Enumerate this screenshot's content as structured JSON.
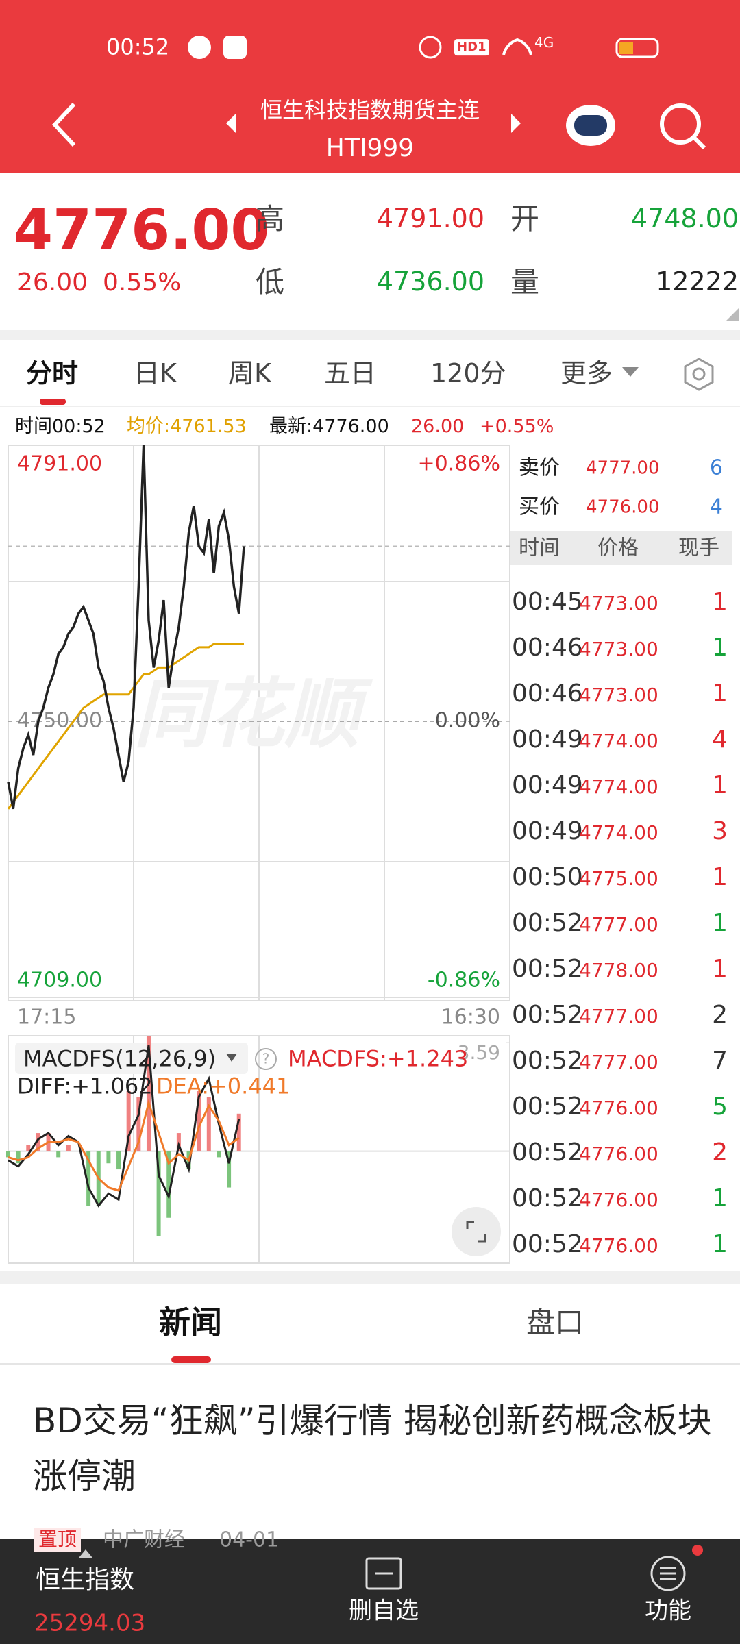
{
  "status_bar": {
    "time": "00:52",
    "hd": "HD1",
    "network": "4G"
  },
  "header": {
    "title": "恒生科技指数期货主连",
    "code": "HTI999"
  },
  "quote": {
    "price": "4776.00",
    "change": "26.00",
    "change_pct": "0.55%",
    "high_label": "高",
    "high": "4791.00",
    "open_label": "开",
    "open": "4748.00",
    "low_label": "低",
    "low": "4736.00",
    "volume_label": "量",
    "volume": "12222"
  },
  "tabs": [
    "分时",
    "日K",
    "周K",
    "五日",
    "120分",
    "更多"
  ],
  "info_bar": {
    "time": "时间00:52",
    "avg": "均价:4761.53",
    "latest": "最新:4776.00",
    "change": "26.00",
    "change_pct": "+0.55%"
  },
  "chart_data": [
    {
      "type": "line",
      "watermark": "同花顺",
      "xlim": [
        0,
        100
      ],
      "xticks": [
        {
          "value": 0,
          "label": "17:15"
        },
        {
          "value": 100,
          "label": "16:30"
        }
      ],
      "ylim": [
        4709,
        4791
      ],
      "yticks": [
        {
          "value": 4791,
          "label": "4791.00"
        },
        {
          "value": 4750,
          "label": "4750.00"
        },
        {
          "value": 4709,
          "label": "4709.00"
        }
      ],
      "y2lim": [
        -0.86,
        0.86
      ],
      "y2ticks": [
        {
          "value": 0.86,
          "label": "+0.86%"
        },
        {
          "value": 0,
          "label": "0.00%"
        },
        {
          "value": -0.86,
          "label": "-0.86%"
        }
      ],
      "last_price_line": 4776,
      "series": [
        {
          "color": "#222222",
          "values": [
            4741,
            4737,
            4743,
            4746,
            4748,
            4745,
            4750,
            4752,
            4755,
            4757,
            4760,
            4761,
            4763,
            4764,
            4766,
            4767,
            4765,
            4763,
            4758,
            4756,
            4752,
            4749,
            4745,
            4741,
            4744,
            4752,
            4770,
            4791,
            4765,
            4758,
            4762,
            4768,
            4755,
            4760,
            4764,
            4770,
            4778,
            4782,
            4776,
            4775,
            4780,
            4772,
            4779,
            4781,
            4777,
            4770,
            4766,
            4776
          ]
        },
        {
          "color": "#e0a400",
          "values": [
            4737,
            4738,
            4739,
            4740,
            4741,
            4742,
            4743,
            4744,
            4745,
            4746,
            4747,
            4748,
            4749,
            4750,
            4751,
            4752,
            4752.5,
            4753,
            4753.5,
            4754,
            4754,
            4754,
            4754,
            4754,
            4754,
            4755,
            4756,
            4757,
            4757,
            4757.5,
            4758,
            4758,
            4758,
            4758.5,
            4759,
            4759.5,
            4760,
            4760.5,
            4761,
            4761,
            4761,
            4761.5,
            4761.5,
            4761.5,
            4761.5,
            4761.5,
            4761.5,
            4761.5
          ]
        }
      ]
    },
    {
      "type": "line",
      "title": "MACDFS(12,26,9)",
      "xlim": [
        0,
        50
      ],
      "ylim": [
        -3.7,
        3.59
      ],
      "yticks": [
        3.59
      ],
      "up_color": "#f08080",
      "down_color": "#7cc47c",
      "series": [
        {
          "name": "MACDFS:+1.243",
          "type": "bar",
          "values": [
            -0.2,
            -0.4,
            0.2,
            0.6,
            0.6,
            -0.2,
            0.2,
            0,
            -1.8,
            -1.8,
            -0.4,
            -0.6,
            2,
            1.8,
            3.8,
            -2.8,
            -2.2,
            0.6,
            -0.6,
            2,
            1.8,
            -0.2,
            -1.2,
            1.24
          ]
        },
        {
          "name": "DIFF:+1.062",
          "color": "#222222",
          "values": [
            -0.3,
            -0.5,
            -0.1,
            0.4,
            0.6,
            0.2,
            0.5,
            0.3,
            -1.2,
            -1.8,
            -1.4,
            -1.6,
            0.5,
            1.2,
            3.5,
            -0.8,
            -1.5,
            0.2,
            -0.6,
            1.8,
            2.4,
            0.9,
            -0.4,
            1.06
          ]
        },
        {
          "name": "DEA:+0.441",
          "color": "#f07a2a",
          "values": [
            -0.2,
            -0.3,
            -0.2,
            0.1,
            0.3,
            0.3,
            0.4,
            0.3,
            -0.3,
            -0.9,
            -1.2,
            -1.3,
            -0.5,
            0.3,
            1.6,
            0.6,
            -0.4,
            -0.1,
            -0.3,
            0.8,
            1.5,
            1.0,
            0.2,
            0.44
          ]
        }
      ]
    }
  ],
  "order_book": {
    "rows": [
      {
        "label": "卖价",
        "price": "4777.00",
        "volume": "6"
      },
      {
        "label": "买价",
        "price": "4776.00",
        "volume": "4"
      }
    ]
  },
  "trades": {
    "headers": [
      "时间",
      "价格",
      "现手"
    ],
    "rows": [
      {
        "time": "00:45",
        "price": "4773.00",
        "volume": "1",
        "color": "#e0282e"
      },
      {
        "time": "00:46",
        "price": "4773.00",
        "volume": "1",
        "color": "#16a33a"
      },
      {
        "time": "00:46",
        "price": "4773.00",
        "volume": "1",
        "color": "#e0282e"
      },
      {
        "time": "00:49",
        "price": "4774.00",
        "volume": "4",
        "color": "#e0282e"
      },
      {
        "time": "00:49",
        "price": "4774.00",
        "volume": "1",
        "color": "#e0282e"
      },
      {
        "time": "00:49",
        "price": "4774.00",
        "volume": "3",
        "color": "#e0282e"
      },
      {
        "time": "00:50",
        "price": "4775.00",
        "volume": "1",
        "color": "#e0282e"
      },
      {
        "time": "00:52",
        "price": "4777.00",
        "volume": "1",
        "color": "#16a33a"
      },
      {
        "time": "00:52",
        "price": "4778.00",
        "volume": "1",
        "color": "#e0282e"
      },
      {
        "time": "00:52",
        "price": "4777.00",
        "volume": "2",
        "color": "#333333"
      },
      {
        "time": "00:52",
        "price": "4777.00",
        "volume": "7",
        "color": "#333333"
      },
      {
        "time": "00:52",
        "price": "4776.00",
        "volume": "5",
        "color": "#16a33a"
      },
      {
        "time": "00:52",
        "price": "4776.00",
        "volume": "2",
        "color": "#e0282e"
      },
      {
        "time": "00:52",
        "price": "4776.00",
        "volume": "1",
        "color": "#16a33a"
      },
      {
        "time": "00:52",
        "price": "4776.00",
        "volume": "1",
        "color": "#16a33a"
      }
    ]
  },
  "news_tabs": [
    "新闻",
    "盘口"
  ],
  "news": {
    "headline": "BD交易“狂飙”引爆行情 揭秘创新药概念板块涨停潮",
    "tag": "置顶",
    "source": "中广财经",
    "date": "04-01"
  },
  "bottom_bar": {
    "index_name": "恒生指数",
    "index_value": "25294.03",
    "remove": "删自选",
    "functions": "功能"
  }
}
